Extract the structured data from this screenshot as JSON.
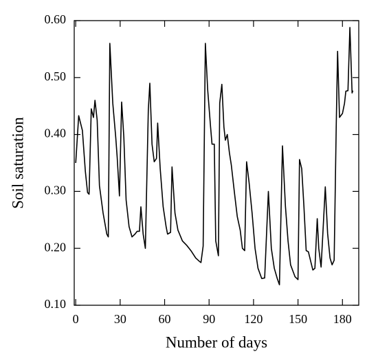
{
  "chart_data": {
    "type": "line",
    "xlabel": "Number of days",
    "ylabel": "Soil saturation",
    "xlim": [
      -1,
      191
    ],
    "ylim": [
      0.1,
      0.6
    ],
    "xticks": [
      0,
      30,
      60,
      90,
      120,
      150,
      180
    ],
    "yticks": [
      {
        "value": 0.1,
        "label": "0.10"
      },
      {
        "value": 0.2,
        "label": "0.20"
      },
      {
        "value": 0.3,
        "label": "0.30"
      },
      {
        "value": 0.4,
        "label": "0.40"
      },
      {
        "value": 0.5,
        "label": "0.50"
      },
      {
        "value": 0.6,
        "label": "0.60"
      }
    ],
    "color": "#000000",
    "x": [
      0,
      2,
      4.5,
      6.5,
      8,
      9,
      10.5,
      12,
      13,
      14.5,
      16,
      18.5,
      21,
      22,
      23,
      25,
      27,
      28,
      29.5,
      31,
      32.5,
      34,
      36,
      38,
      40,
      41.5,
      43,
      44,
      45.5,
      47,
      49,
      50,
      51.5,
      53,
      54.5,
      55.3,
      57,
      59,
      61,
      62,
      64,
      65,
      67,
      69,
      72,
      75,
      78,
      81,
      83.5,
      84.5,
      86,
      87.5,
      89,
      91,
      92,
      93.5,
      94.5,
      96.3,
      97.2,
      98.6,
      100,
      101,
      102.3,
      103.7,
      105,
      107,
      109,
      111,
      112.5,
      114,
      115.3,
      117,
      119,
      121,
      123,
      125.5,
      127.5,
      130,
      132,
      134,
      136,
      137.5,
      139.5,
      141.5,
      143.3,
      145,
      148,
      150,
      151,
      152.5,
      154,
      155.5,
      157,
      158.6,
      160,
      161.4,
      163,
      164,
      165.6,
      167,
      168.4,
      170,
      171.6,
      173,
      174.4,
      175.8,
      176.7,
      178,
      180,
      181.4,
      182.3,
      183.7,
      185,
      186.5,
      187
    ],
    "values": [
      0.35,
      0.433,
      0.407,
      0.335,
      0.298,
      0.295,
      0.445,
      0.43,
      0.46,
      0.425,
      0.31,
      0.262,
      0.225,
      0.22,
      0.56,
      0.455,
      0.395,
      0.36,
      0.292,
      0.457,
      0.395,
      0.285,
      0.238,
      0.22,
      0.225,
      0.23,
      0.23,
      0.273,
      0.225,
      0.2,
      0.443,
      0.49,
      0.383,
      0.352,
      0.358,
      0.42,
      0.34,
      0.273,
      0.238,
      0.225,
      0.228,
      0.343,
      0.262,
      0.232,
      0.213,
      0.205,
      0.195,
      0.183,
      0.177,
      0.175,
      0.204,
      0.56,
      0.48,
      0.413,
      0.383,
      0.383,
      0.213,
      0.187,
      0.455,
      0.488,
      0.413,
      0.39,
      0.4,
      0.368,
      0.346,
      0.3,
      0.256,
      0.232,
      0.2,
      0.196,
      0.352,
      0.316,
      0.262,
      0.2,
      0.165,
      0.147,
      0.148,
      0.3,
      0.2,
      0.165,
      0.147,
      0.136,
      0.38,
      0.274,
      0.213,
      0.171,
      0.15,
      0.145,
      0.356,
      0.34,
      0.274,
      0.196,
      0.194,
      0.177,
      0.162,
      0.165,
      0.252,
      0.2,
      0.167,
      0.238,
      0.308,
      0.226,
      0.183,
      0.171,
      0.179,
      0.413,
      0.546,
      0.43,
      0.437,
      0.455,
      0.476,
      0.477,
      0.588,
      0.473,
      0.477
    ]
  }
}
